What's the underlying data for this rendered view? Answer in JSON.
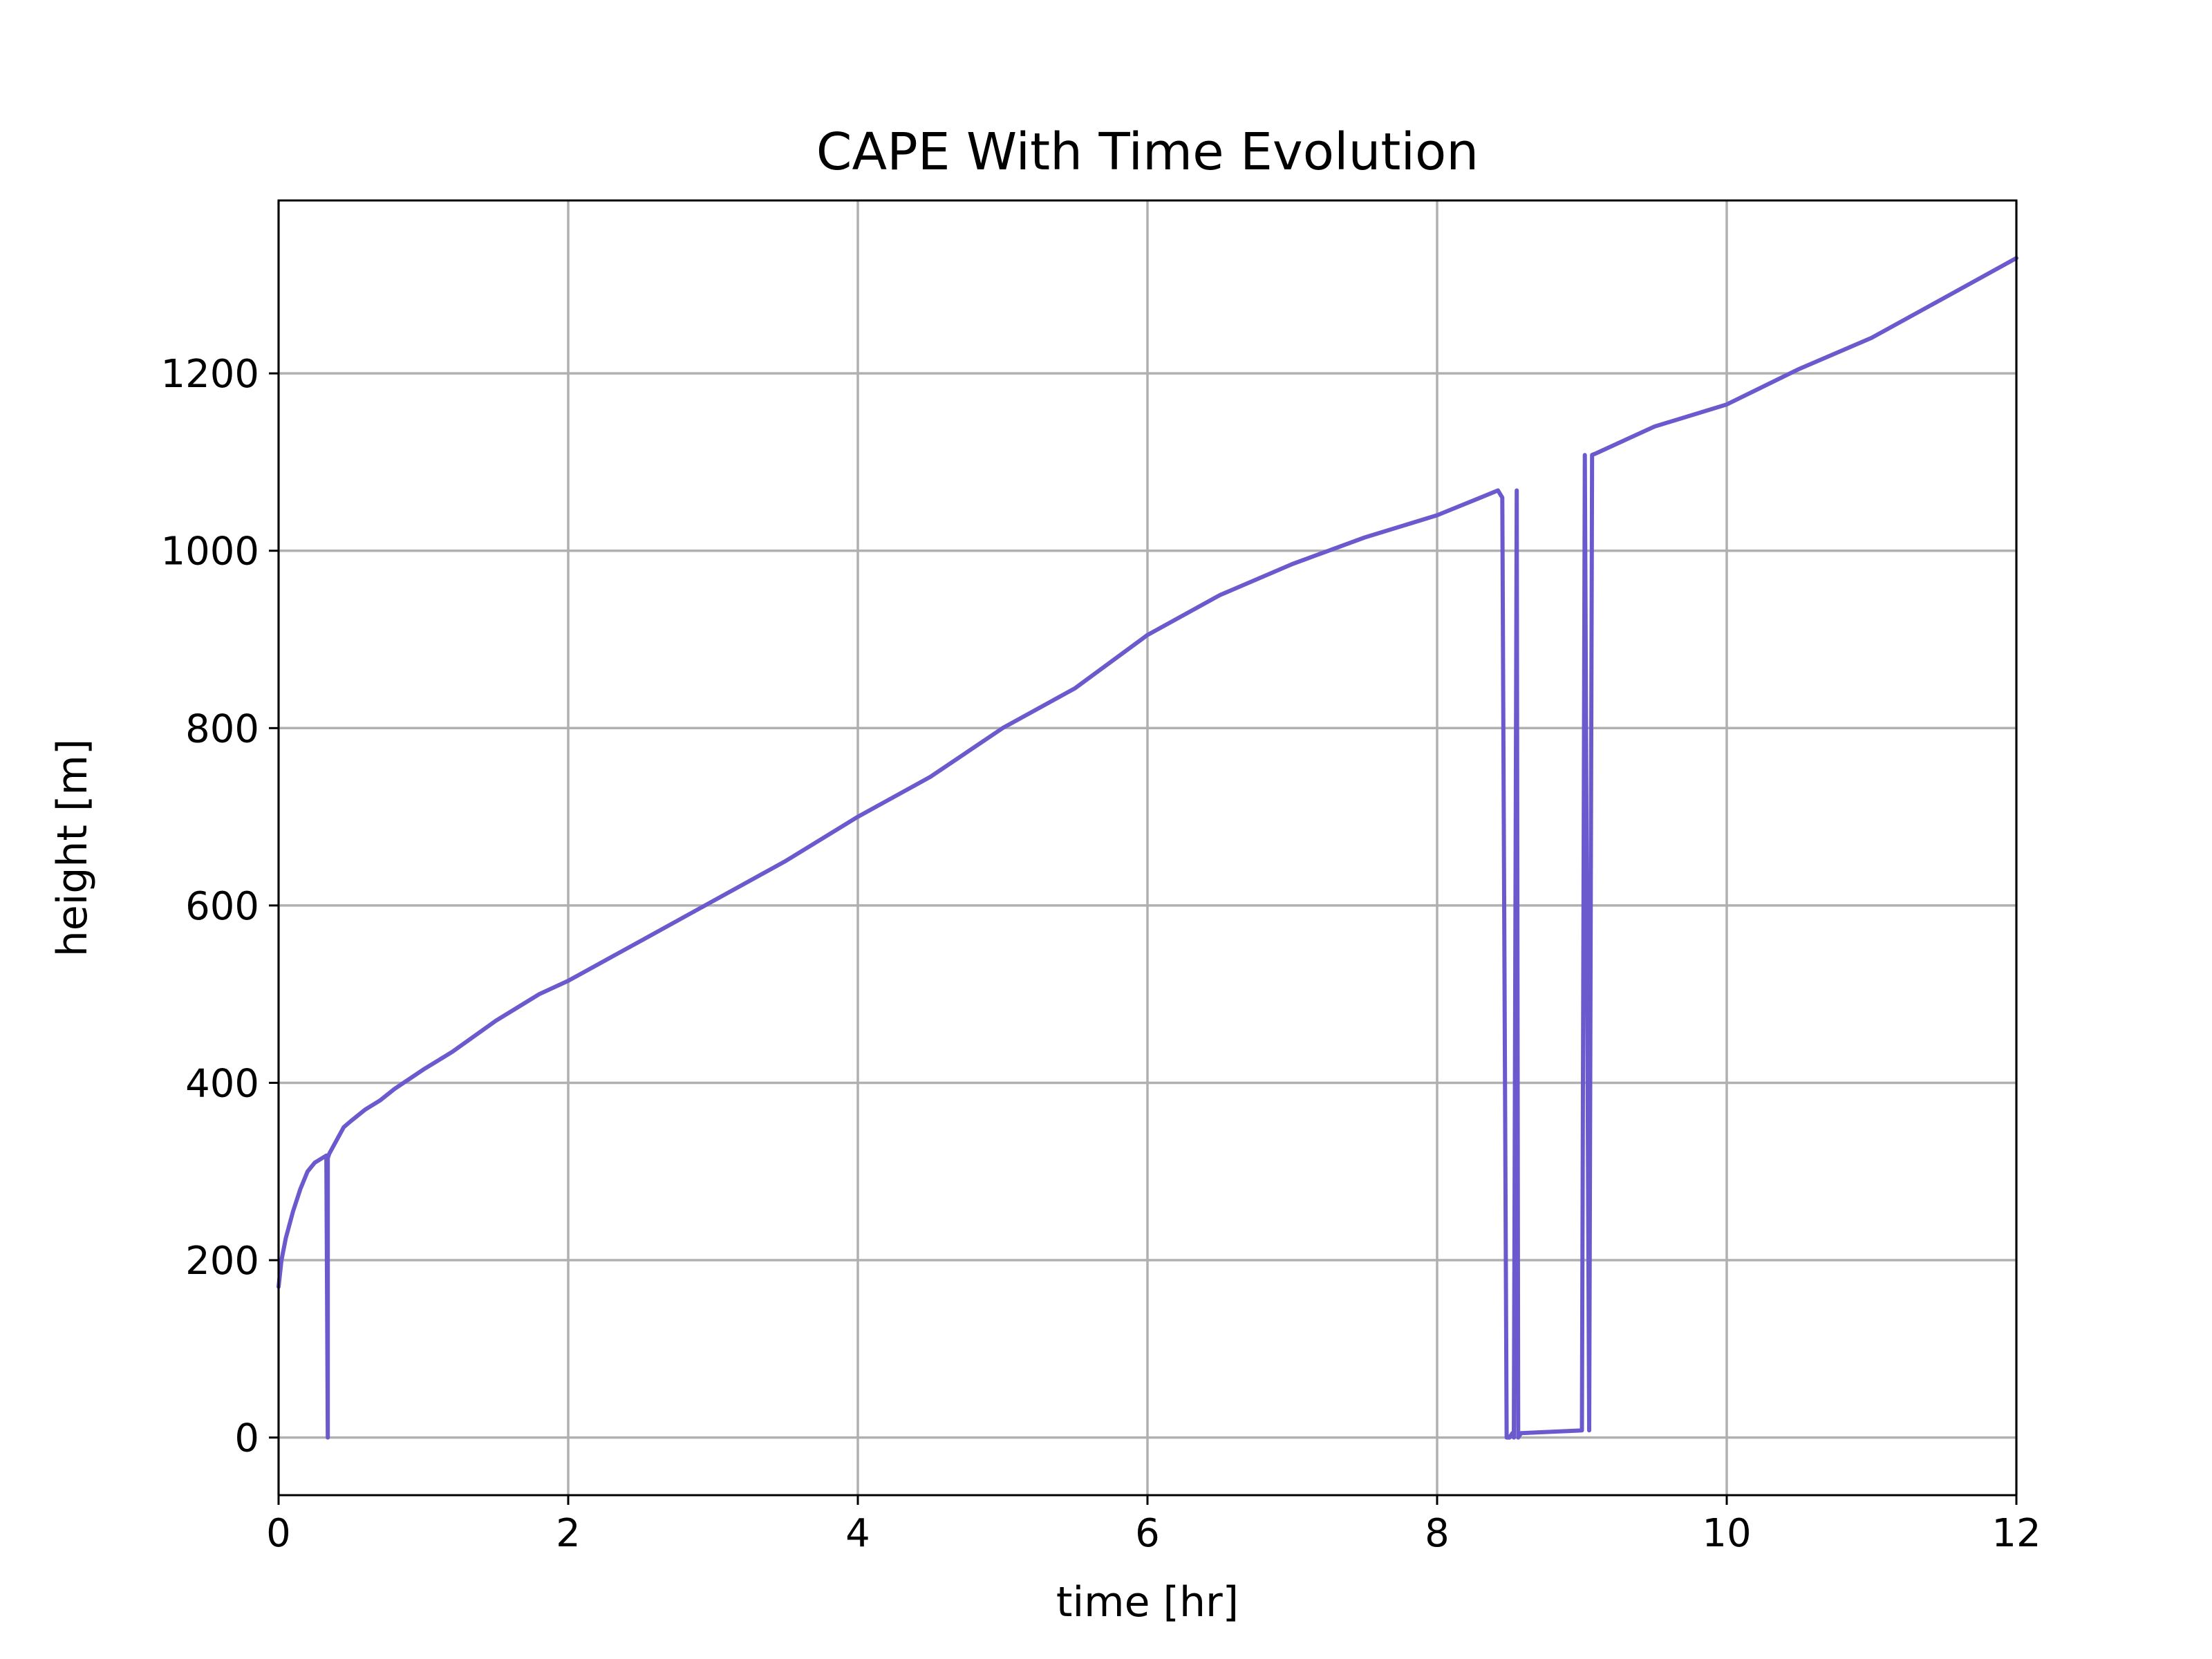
{
  "chart_data": {
    "type": "line",
    "title": "CAPE With Time Evolution",
    "xlabel": "time [hr]",
    "ylabel": "height [m]",
    "xlim": [
      0,
      12
    ],
    "ylim": [
      -65,
      1395
    ],
    "xticks": [
      0,
      2,
      4,
      6,
      8,
      10,
      12
    ],
    "xtick_labels": [
      "0",
      "2",
      "4",
      "6",
      "8",
      "10",
      "12"
    ],
    "yticks": [
      0,
      200,
      400,
      600,
      800,
      1000,
      1200
    ],
    "ytick_labels": [
      "0",
      "200",
      "400",
      "600",
      "800",
      "1000",
      "1200"
    ],
    "grid": true,
    "colors": {
      "line": "#6a5acd",
      "grid": "#b0b0b0",
      "axes": "#000000"
    },
    "series": [
      {
        "x": [
          0.0,
          0.02,
          0.05,
          0.1,
          0.15,
          0.2,
          0.25,
          0.3,
          0.33,
          0.34,
          0.34,
          0.35,
          0.4,
          0.45,
          0.5,
          0.6,
          0.7,
          0.8,
          1.0,
          1.2,
          1.5,
          1.8,
          2.0,
          2.5,
          3.0,
          3.5,
          4.0,
          4.5,
          5.0,
          5.5,
          6.0,
          6.5,
          7.0,
          7.5,
          8.0,
          8.3,
          8.42,
          8.45,
          8.48,
          8.5,
          8.52,
          8.53,
          8.55,
          8.56,
          8.58,
          9.0,
          9.02,
          9.05,
          9.07,
          9.1,
          9.5,
          10.0,
          10.5,
          11.0,
          11.5,
          12.0
        ],
        "y": [
          170,
          200,
          225,
          255,
          280,
          300,
          310,
          315,
          318,
          0,
          315,
          320,
          335,
          350,
          357,
          370,
          380,
          393,
          415,
          435,
          470,
          500,
          515,
          560,
          605,
          650,
          700,
          745,
          800,
          845,
          905,
          950,
          985,
          1015,
          1040,
          1060,
          1068,
          1060,
          0,
          0,
          5,
          0,
          1068,
          0,
          5,
          8,
          1108,
          8,
          1108,
          1110,
          1140,
          1165,
          1205,
          1240,
          1285,
          1330
        ]
      }
    ]
  }
}
